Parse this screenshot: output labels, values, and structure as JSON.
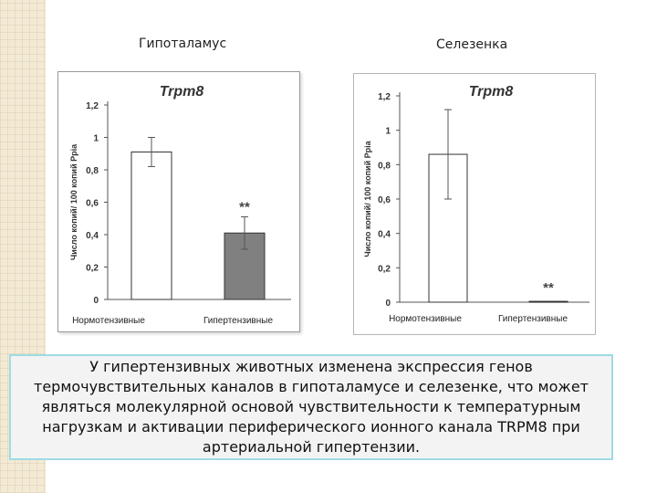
{
  "panels": [
    {
      "title": "Гипоталамус"
    },
    {
      "title": "Селезенка"
    }
  ],
  "caption": "У гипертензивных животных изменена экспрессия генов термочувствительных каналов в гипоталамусе и селезенке, что может являться молекулярной основой чувствительности к температурным нагрузкам и активации периферического ионного канала TRPM8 при артериальной гипертензии.",
  "colors": {
    "bar_normo": "#ffffff",
    "bar_hyper": "#808080",
    "bar_stroke": "#333333",
    "caption_border": "#9edbe4"
  },
  "chart_data": [
    {
      "type": "bar",
      "title": "Trpm8",
      "ylabel": "Число копий/ 100 копий Ppia",
      "categories": [
        "Нормотензивные",
        "Гипертензивные"
      ],
      "values": [
        0.91,
        0.41
      ],
      "errors": [
        0.09,
        0.1
      ],
      "significance": [
        "",
        "**"
      ],
      "ylim": [
        0,
        1.2
      ],
      "yticks": [
        "0",
        "0,2",
        "0,4",
        "0,6",
        "0,8",
        "1",
        "1,2"
      ],
      "ytick_values": [
        0,
        0.2,
        0.4,
        0.6,
        0.8,
        1,
        1.2
      ]
    },
    {
      "type": "bar",
      "title": "Trpm8",
      "ylabel": "Число копий/ 100 копий Ppia",
      "categories": [
        "Нормотензивные",
        "Гипертензивные"
      ],
      "values": [
        0.86,
        0.005
      ],
      "errors": [
        0.26,
        0
      ],
      "significance": [
        "",
        "**"
      ],
      "ylim": [
        0,
        1.2
      ],
      "yticks": [
        "0",
        "0,2",
        "0,4",
        "0,6",
        "0,8",
        "1",
        "1,2"
      ],
      "ytick_values": [
        0,
        0.2,
        0.4,
        0.6,
        0.8,
        1,
        1.2
      ]
    }
  ]
}
